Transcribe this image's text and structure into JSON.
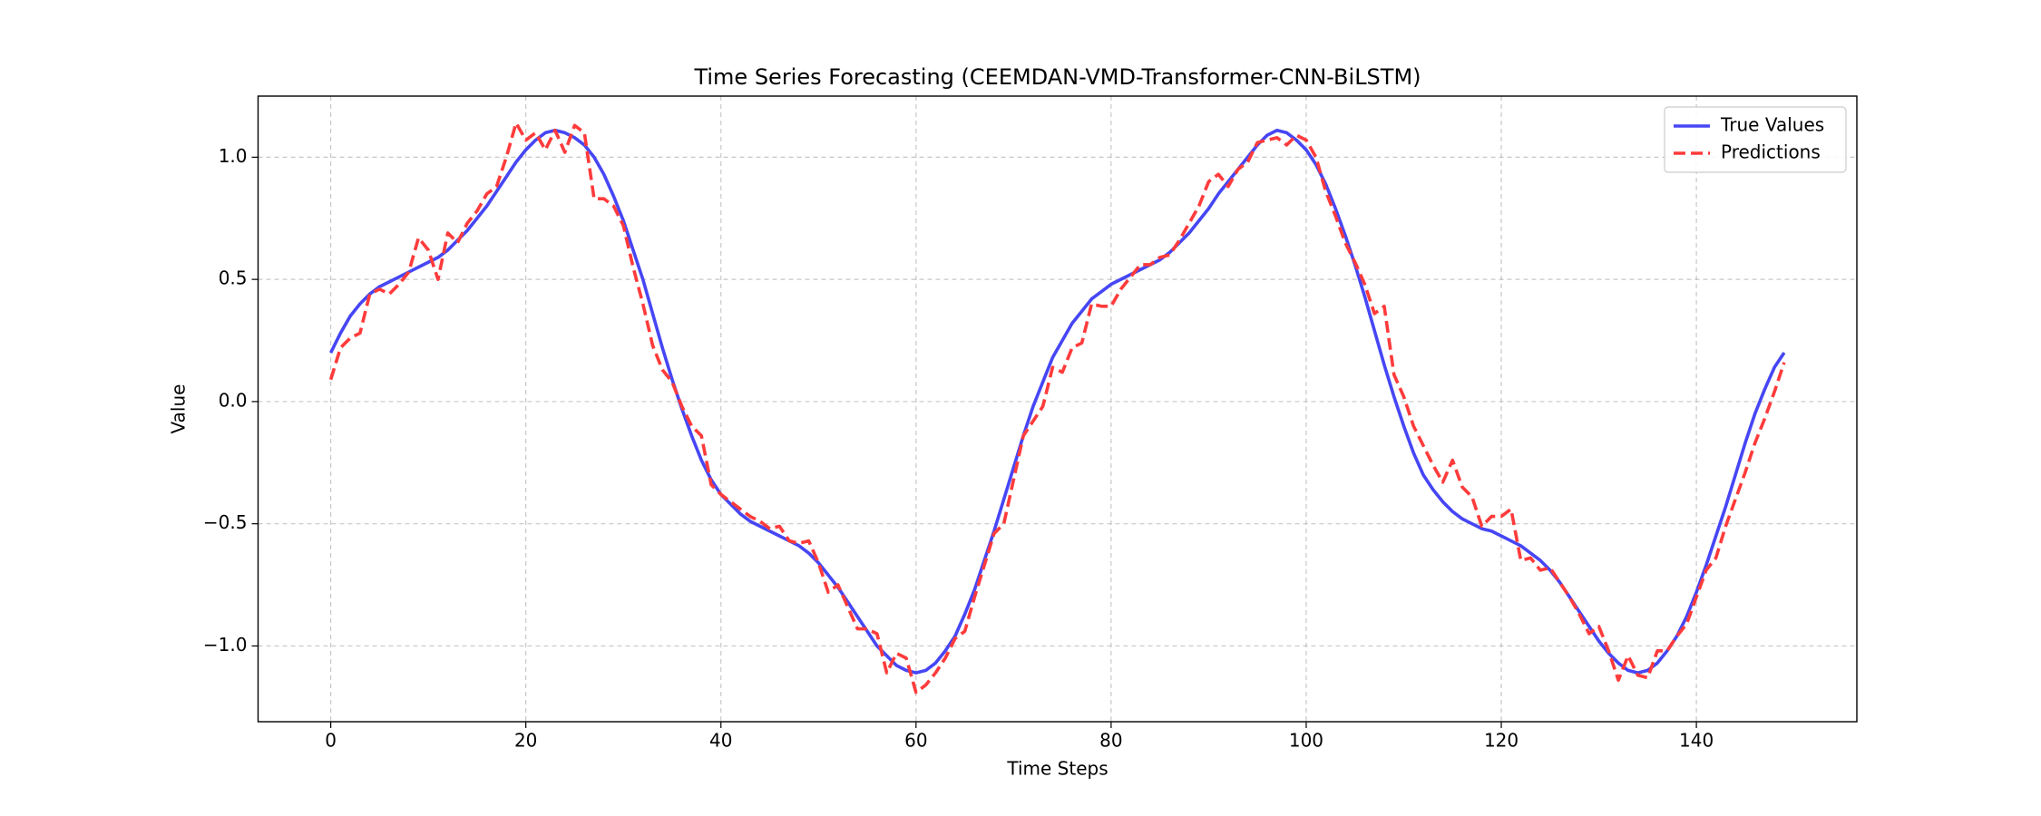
{
  "chart_data": {
    "type": "line",
    "title": "Time Series Forecasting (CEEMDAN-VMD-Transformer-CNN-BiLSTM)",
    "x_label": "Time Steps",
    "y_label": "Value",
    "x": [
      0,
      1,
      2,
      3,
      4,
      5,
      6,
      7,
      8,
      9,
      10,
      11,
      12,
      13,
      14,
      15,
      16,
      17,
      18,
      19,
      20,
      21,
      22,
      23,
      24,
      25,
      26,
      27,
      28,
      29,
      30,
      31,
      32,
      33,
      34,
      35,
      36,
      37,
      38,
      39,
      40,
      41,
      42,
      43,
      44,
      45,
      46,
      47,
      48,
      49,
      50,
      51,
      52,
      53,
      54,
      55,
      56,
      57,
      58,
      59,
      60,
      61,
      62,
      63,
      64,
      65,
      66,
      67,
      68,
      69,
      70,
      71,
      72,
      73,
      74,
      75,
      76,
      77,
      78,
      79,
      80,
      81,
      82,
      83,
      84,
      85,
      86,
      87,
      88,
      89,
      90,
      91,
      92,
      93,
      94,
      95,
      96,
      97,
      98,
      99,
      100,
      101,
      102,
      103,
      104,
      105,
      106,
      107,
      108,
      109,
      110,
      111,
      112,
      113,
      114,
      115,
      116,
      117,
      118,
      119,
      120,
      121,
      122,
      123,
      124,
      125,
      126,
      127,
      128,
      129,
      130,
      131,
      132,
      133,
      134,
      135,
      136,
      137,
      138,
      139,
      140,
      141,
      142,
      143,
      144,
      145,
      146,
      147,
      148,
      149
    ],
    "series": [
      {
        "name": "True Values",
        "color": "#4646f5",
        "linestyle": "solid",
        "values": [
          0.2,
          0.28,
          0.35,
          0.4,
          0.44,
          0.47,
          0.49,
          0.51,
          0.53,
          0.55,
          0.57,
          0.59,
          0.62,
          0.66,
          0.7,
          0.75,
          0.8,
          0.86,
          0.92,
          0.98,
          1.03,
          1.07,
          1.1,
          1.11,
          1.1,
          1.08,
          1.05,
          1.0,
          0.93,
          0.84,
          0.74,
          0.62,
          0.5,
          0.36,
          0.22,
          0.09,
          -0.03,
          -0.14,
          -0.24,
          -0.32,
          -0.38,
          -0.42,
          -0.46,
          -0.49,
          -0.51,
          -0.53,
          -0.55,
          -0.57,
          -0.59,
          -0.62,
          -0.66,
          -0.71,
          -0.76,
          -0.82,
          -0.88,
          -0.94,
          -1.0,
          -1.04,
          -1.08,
          -1.1,
          -1.11,
          -1.1,
          -1.07,
          -1.02,
          -0.96,
          -0.87,
          -0.77,
          -0.65,
          -0.53,
          -0.4,
          -0.27,
          -0.14,
          -0.02,
          0.08,
          0.18,
          0.25,
          0.32,
          0.37,
          0.42,
          0.45,
          0.48,
          0.5,
          0.52,
          0.54,
          0.56,
          0.58,
          0.61,
          0.65,
          0.69,
          0.74,
          0.79,
          0.85,
          0.9,
          0.95,
          1.0,
          1.05,
          1.09,
          1.11,
          1.1,
          1.07,
          1.03,
          0.97,
          0.89,
          0.79,
          0.68,
          0.56,
          0.43,
          0.29,
          0.15,
          0.02,
          -0.1,
          -0.21,
          -0.3,
          -0.36,
          -0.41,
          -0.45,
          -0.48,
          -0.5,
          -0.52,
          -0.53,
          -0.55,
          -0.57,
          -0.59,
          -0.62,
          -0.65,
          -0.69,
          -0.74,
          -0.8,
          -0.86,
          -0.92,
          -0.98,
          -1.03,
          -1.07,
          -1.1,
          -1.11,
          -1.1,
          -1.07,
          -1.02,
          -0.96,
          -0.88,
          -0.78,
          -0.67,
          -0.55,
          -0.43,
          -0.3,
          -0.17,
          -0.05,
          0.05,
          0.14,
          0.2
        ]
      },
      {
        "name": "Predictions",
        "color": "#ff3b3b",
        "linestyle": "dashed",
        "values": [
          0.09,
          0.22,
          0.26,
          0.28,
          0.44,
          0.46,
          0.44,
          0.48,
          0.53,
          0.67,
          0.62,
          0.5,
          0.69,
          0.65,
          0.73,
          0.78,
          0.85,
          0.88,
          1.0,
          1.14,
          1.07,
          1.1,
          1.03,
          1.11,
          1.02,
          1.13,
          1.1,
          0.83,
          0.83,
          0.8,
          0.72,
          0.55,
          0.4,
          0.23,
          0.13,
          0.08,
          -0.02,
          -0.1,
          -0.14,
          -0.34,
          -0.38,
          -0.41,
          -0.44,
          -0.47,
          -0.49,
          -0.52,
          -0.51,
          -0.57,
          -0.58,
          -0.57,
          -0.66,
          -0.78,
          -0.75,
          -0.84,
          -0.93,
          -0.93,
          -0.95,
          -1.11,
          -1.03,
          -1.05,
          -1.19,
          -1.16,
          -1.11,
          -1.05,
          -0.97,
          -0.94,
          -0.8,
          -0.67,
          -0.54,
          -0.5,
          -0.32,
          -0.14,
          -0.08,
          -0.02,
          0.14,
          0.12,
          0.22,
          0.24,
          0.4,
          0.39,
          0.39,
          0.46,
          0.51,
          0.56,
          0.56,
          0.59,
          0.6,
          0.66,
          0.73,
          0.8,
          0.9,
          0.93,
          0.88,
          0.95,
          0.98,
          1.06,
          1.07,
          1.08,
          1.05,
          1.09,
          1.07,
          1.0,
          0.86,
          0.76,
          0.65,
          0.57,
          0.48,
          0.36,
          0.39,
          0.11,
          0.02,
          -0.1,
          -0.18,
          -0.26,
          -0.33,
          -0.24,
          -0.35,
          -0.39,
          -0.51,
          -0.47,
          -0.47,
          -0.44,
          -0.65,
          -0.64,
          -0.69,
          -0.68,
          -0.74,
          -0.8,
          -0.87,
          -0.95,
          -0.92,
          -1.02,
          -1.14,
          -1.04,
          -1.12,
          -1.13,
          -1.02,
          -1.02,
          -0.96,
          -0.91,
          -0.8,
          -0.69,
          -0.64,
          -0.51,
          -0.4,
          -0.29,
          -0.17,
          -0.07,
          0.04,
          0.16
        ]
      }
    ],
    "xlim": [
      -7.45,
      156.45
    ],
    "xticks": [
      0,
      20,
      40,
      60,
      80,
      100,
      120,
      140
    ],
    "ylim": [
      -1.31,
      1.25
    ],
    "yticks": [
      {
        "value": -1.0,
        "label": "−1.0"
      },
      {
        "value": -0.5,
        "label": "−0.5"
      },
      {
        "value": 0,
        "label": "0.0"
      },
      {
        "value": 0.5,
        "label": "0.5"
      },
      {
        "value": 1.0,
        "label": "1.0"
      }
    ],
    "grid": true,
    "legend": "upper right"
  }
}
